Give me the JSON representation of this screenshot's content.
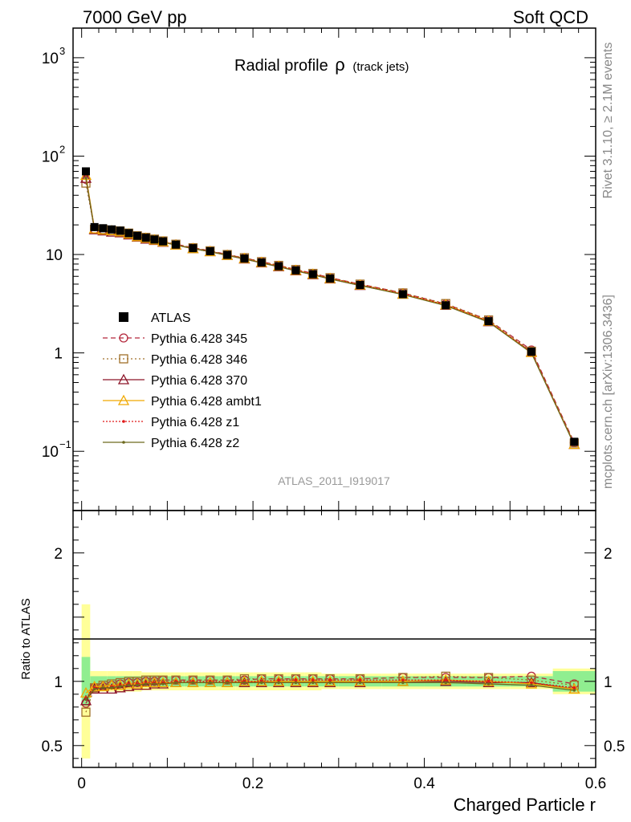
{
  "header": {
    "left": "7000 GeV pp",
    "right": "Soft QCD"
  },
  "side_labels": {
    "rivet": "Rivet 3.1.10, ≥ 2.1M events",
    "mcplots": "mcplots.cern.ch [arXiv:1306.3436]"
  },
  "chart_data": {
    "type": "line",
    "title_main": "Radial profile",
    "title_symbol": "ρ",
    "title_suffix": "(track jets)",
    "analysis": "ATLAS_2011_I919017",
    "xlabel": "Charged Particle r",
    "ylabel_ratio": "Ratio to ATLAS",
    "xlim": [
      -0.01,
      0.6
    ],
    "ylim_main": [
      0.025,
      2000
    ],
    "ylim_ratio": [
      0.33,
      2.33
    ],
    "yscale_main": "log",
    "grid": false,
    "legend_position": "left-middle",
    "x_ticks": [
      "0",
      "0.2",
      "0.4",
      "0.6"
    ],
    "main_y_ticks": [
      {
        "value": 0.1,
        "base": "10",
        "exp": "−1"
      },
      {
        "value": 1,
        "base": "1",
        "exp": ""
      },
      {
        "value": 10,
        "base": "10",
        "exp": ""
      },
      {
        "value": 100,
        "base": "10",
        "exp": "2"
      },
      {
        "value": 1000,
        "base": "10",
        "exp": "3"
      }
    ],
    "ratio_y_ticks": [
      "0.5",
      "1",
      "2"
    ],
    "x": [
      0.005,
      0.015,
      0.025,
      0.035,
      0.045,
      0.055,
      0.065,
      0.075,
      0.085,
      0.095,
      0.11,
      0.13,
      0.15,
      0.17,
      0.19,
      0.21,
      0.23,
      0.25,
      0.27,
      0.29,
      0.325,
      0.375,
      0.425,
      0.475,
      0.525,
      0.575
    ],
    "x_edges": [
      0,
      0.01,
      0.02,
      0.03,
      0.04,
      0.05,
      0.06,
      0.07,
      0.08,
      0.09,
      0.1,
      0.12,
      0.14,
      0.16,
      0.18,
      0.2,
      0.22,
      0.24,
      0.26,
      0.28,
      0.3,
      0.35,
      0.4,
      0.45,
      0.5,
      0.55,
      0.6
    ],
    "data": {
      "name": "ATLAS",
      "values": [
        70,
        19,
        18.5,
        18,
        17.5,
        16.5,
        15.5,
        14.8,
        14.2,
        13.6,
        12.6,
        11.6,
        10.8,
        9.9,
        9.1,
        8.3,
        7.6,
        6.9,
        6.3,
        5.7,
        4.9,
        3.95,
        3.05,
        2.1,
        1.03,
        0.125
      ],
      "band_inner": [
        0.19,
        0.04,
        0.04,
        0.04,
        0.04,
        0.04,
        0.04,
        0.04,
        0.04,
        0.04,
        0.04,
        0.04,
        0.04,
        0.04,
        0.04,
        0.04,
        0.04,
        0.04,
        0.04,
        0.04,
        0.04,
        0.04,
        0.04,
        0.04,
        0.04,
        0.08
      ],
      "band_outer": [
        0.6,
        0.08,
        0.08,
        0.08,
        0.08,
        0.08,
        0.08,
        0.07,
        0.07,
        0.07,
        0.07,
        0.07,
        0.07,
        0.07,
        0.07,
        0.07,
        0.07,
        0.07,
        0.07,
        0.06,
        0.06,
        0.06,
        0.06,
        0.06,
        0.06,
        0.1
      ]
    },
    "series": [
      {
        "name": "Pythia 6.428 345",
        "color": "#b4283c",
        "dash": "6,4",
        "marker": "circle",
        "ratio": [
          0.83,
          0.95,
          0.96,
          0.97,
          0.98,
          0.99,
          0.99,
          1.0,
          1.0,
          1.01,
          1.01,
          1.01,
          1.01,
          1.01,
          1.01,
          1.02,
          1.02,
          1.02,
          1.02,
          1.02,
          1.02,
          1.03,
          1.03,
          1.03,
          1.04,
          0.98
        ]
      },
      {
        "name": "Pythia 6.428 346",
        "color": "#a0702a",
        "dash": "2,3",
        "marker": "square",
        "ratio": [
          0.76,
          0.95,
          0.97,
          0.98,
          0.99,
          1.0,
          1.0,
          1.01,
          1.01,
          1.01,
          1.01,
          1.01,
          1.01,
          1.01,
          1.02,
          1.02,
          1.02,
          1.02,
          1.02,
          1.02,
          1.02,
          1.03,
          1.04,
          1.03,
          1.01,
          0.97
        ]
      },
      {
        "name": "Pythia 6.428 370",
        "color": "#8c1428",
        "dash": "",
        "marker": "triangle",
        "ratio": [
          0.85,
          0.94,
          0.94,
          0.94,
          0.95,
          0.96,
          0.97,
          0.97,
          0.98,
          0.98,
          0.99,
          0.99,
          0.99,
          0.99,
          0.99,
          0.99,
          0.99,
          0.99,
          0.99,
          0.99,
          0.99,
          1.0,
          1.0,
          0.99,
          0.99,
          0.94
        ]
      },
      {
        "name": "Pythia 6.428 ambt1",
        "color": "#f0a800",
        "dash": "",
        "marker": "triangle",
        "ratio": [
          0.91,
          0.96,
          0.96,
          0.97,
          0.97,
          0.98,
          0.98,
          0.99,
          0.99,
          0.99,
          0.99,
          0.99,
          0.99,
          0.99,
          1.0,
          1.0,
          1.0,
          1.0,
          1.0,
          1.0,
          1.0,
          1.0,
          1.01,
          1.0,
          0.98,
          0.94
        ]
      },
      {
        "name": "Pythia 6.428 z1",
        "color": "#e01818",
        "dash": "2,2",
        "marker": "dot",
        "ratio": [
          0.87,
          0.95,
          0.95,
          0.96,
          0.97,
          0.98,
          0.98,
          0.99,
          0.99,
          0.99,
          1.0,
          1.0,
          1.0,
          1.0,
          1.0,
          1.0,
          1.01,
          1.01,
          1.01,
          1.01,
          1.01,
          1.01,
          1.01,
          1.0,
          0.99,
          0.95
        ]
      },
      {
        "name": "Pythia 6.428 z2",
        "color": "#6e6a1e",
        "dash": "",
        "marker": "dot",
        "ratio": [
          0.86,
          0.94,
          0.95,
          0.95,
          0.96,
          0.97,
          0.97,
          0.98,
          0.98,
          0.98,
          0.99,
          0.99,
          0.99,
          0.99,
          0.99,
          0.99,
          0.99,
          0.99,
          0.99,
          0.99,
          0.99,
          0.99,
          0.99,
          0.98,
          0.97,
          0.93
        ]
      }
    ]
  }
}
